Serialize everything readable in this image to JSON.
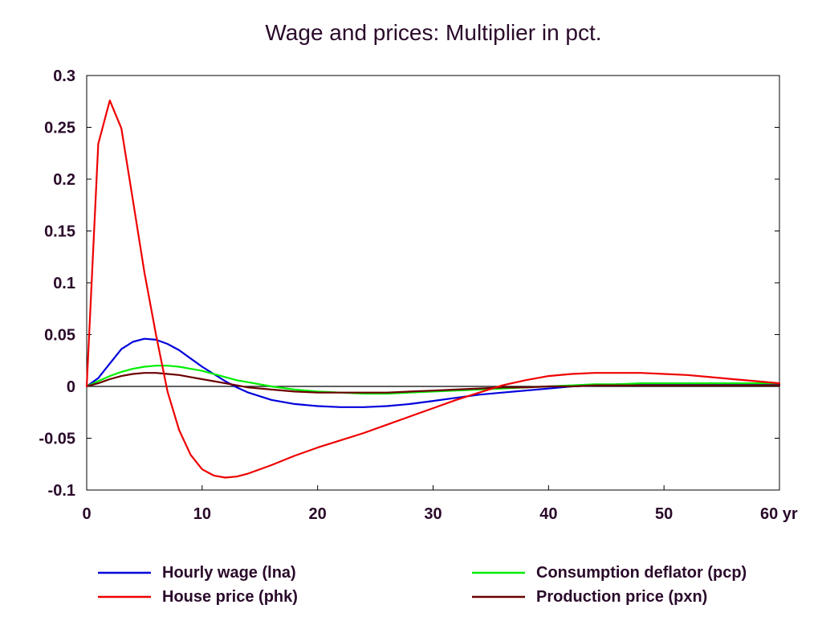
{
  "chart_data": {
    "type": "line",
    "title": "Wage and prices: Multiplier in pct.",
    "xlabel": "",
    "ylabel": "",
    "x_unit": "yr",
    "xlim": [
      0,
      60
    ],
    "ylim": [
      -0.1,
      0.3
    ],
    "x_ticks": [
      0,
      10,
      20,
      30,
      40,
      50,
      60
    ],
    "x_tick_labels": [
      "0",
      "10",
      "20",
      "30",
      "40",
      "50",
      "60 yr"
    ],
    "y_ticks": [
      -0.1,
      -0.05,
      0,
      0.05,
      0.1,
      0.15,
      0.2,
      0.25,
      0.3
    ],
    "y_tick_labels": [
      "-0.1",
      "-0.05",
      "0",
      "0.05",
      "0.1",
      "0.15",
      "0.2",
      "0.25",
      "0.3"
    ],
    "grid": false,
    "zero_line": true,
    "legend_position": "bottom",
    "series": [
      {
        "name": "Hourly wage (lna)",
        "color": "#0000dd",
        "x": [
          0,
          1,
          2,
          3,
          4,
          5,
          6,
          7,
          8,
          9,
          10,
          11,
          12,
          13,
          14,
          16,
          18,
          20,
          22,
          24,
          26,
          28,
          30,
          32,
          34,
          36,
          38,
          40,
          42,
          44,
          46,
          48,
          50,
          55,
          60
        ],
        "y": [
          0,
          0.008,
          0.022,
          0.036,
          0.043,
          0.046,
          0.045,
          0.041,
          0.035,
          0.027,
          0.019,
          0.012,
          0.005,
          -0.001,
          -0.006,
          -0.013,
          -0.017,
          -0.019,
          -0.02,
          -0.02,
          -0.019,
          -0.017,
          -0.014,
          -0.011,
          -0.008,
          -0.006,
          -0.004,
          -0.002,
          0,
          0.001,
          0.002,
          0.002,
          0.002,
          0.002,
          0.002
        ]
      },
      {
        "name": "Consumption deflator (pcp)",
        "color": "#00ee00",
        "x": [
          0,
          1,
          2,
          3,
          4,
          5,
          6,
          7,
          8,
          9,
          10,
          11,
          12,
          13,
          14,
          16,
          18,
          20,
          22,
          24,
          26,
          28,
          30,
          32,
          34,
          36,
          38,
          40,
          42,
          44,
          46,
          48,
          50,
          55,
          60
        ],
        "y": [
          0,
          0.005,
          0.01,
          0.014,
          0.017,
          0.019,
          0.02,
          0.02,
          0.019,
          0.017,
          0.015,
          0.012,
          0.009,
          0.006,
          0.004,
          0.0,
          -0.003,
          -0.005,
          -0.006,
          -0.007,
          -0.007,
          -0.006,
          -0.005,
          -0.004,
          -0.003,
          -0.002,
          -0.001,
          0,
          0.001,
          0.002,
          0.002,
          0.003,
          0.003,
          0.003,
          0.003
        ]
      },
      {
        "name": "House price (phk)",
        "color": "#ee0000",
        "x": [
          0,
          1,
          2,
          3,
          4,
          5,
          6,
          7,
          8,
          9,
          10,
          11,
          12,
          13,
          14,
          16,
          18,
          20,
          22,
          24,
          26,
          28,
          30,
          32,
          34,
          36,
          38,
          40,
          42,
          44,
          46,
          48,
          50,
          52,
          54,
          56,
          58,
          60
        ],
        "y": [
          0,
          0.234,
          0.276,
          0.249,
          0.18,
          0.11,
          0.05,
          -0.005,
          -0.042,
          -0.066,
          -0.08,
          -0.086,
          -0.088,
          -0.087,
          -0.084,
          -0.076,
          -0.067,
          -0.059,
          -0.052,
          -0.045,
          -0.037,
          -0.029,
          -0.021,
          -0.013,
          -0.006,
          0.001,
          0.006,
          0.01,
          0.012,
          0.013,
          0.013,
          0.013,
          0.012,
          0.011,
          0.009,
          0.007,
          0.005,
          0.003
        ]
      },
      {
        "name": "Production price (pxn)",
        "color": "#6b0000",
        "x": [
          0,
          1,
          2,
          3,
          4,
          5,
          6,
          7,
          8,
          9,
          10,
          11,
          12,
          13,
          14,
          16,
          18,
          20,
          22,
          24,
          26,
          28,
          30,
          32,
          34,
          36,
          38,
          40,
          42,
          44,
          46,
          48,
          50,
          55,
          60
        ],
        "y": [
          0,
          0.003,
          0.007,
          0.01,
          0.012,
          0.013,
          0.013,
          0.012,
          0.011,
          0.009,
          0.007,
          0.005,
          0.003,
          0.001,
          -0.001,
          -0.003,
          -0.005,
          -0.006,
          -0.006,
          -0.006,
          -0.006,
          -0.005,
          -0.004,
          -0.003,
          -0.002,
          -0.001,
          -0.001,
          0,
          0.0,
          0.001,
          0.001,
          0.001,
          0.001,
          0.001,
          0.001
        ]
      }
    ],
    "legend_order": [
      0,
      1,
      2,
      3
    ]
  }
}
